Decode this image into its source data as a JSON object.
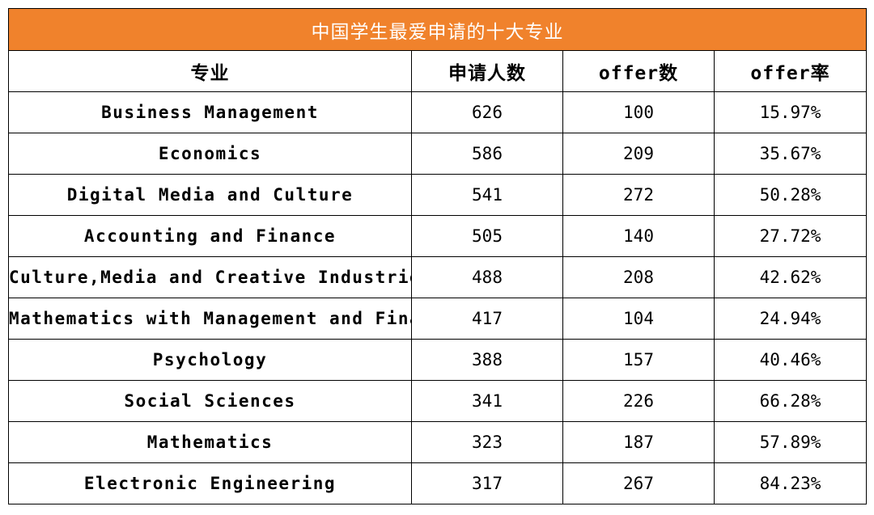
{
  "table": {
    "title": "中国学生最爱申请的十大专业",
    "headers": [
      "专业",
      "申请人数",
      "offer数",
      "offer率"
    ],
    "rows": [
      {
        "major": "Business Management",
        "applicants": "626",
        "offers": "100",
        "rate": "15.97%"
      },
      {
        "major": "Economics",
        "applicants": "586",
        "offers": "209",
        "rate": "35.67%"
      },
      {
        "major": "Digital Media and Culture",
        "applicants": "541",
        "offers": "272",
        "rate": "50.28%"
      },
      {
        "major": "Accounting and Finance",
        "applicants": "505",
        "offers": "140",
        "rate": "27.72%"
      },
      {
        "major": "Culture,Media and Creative Industries",
        "applicants": "488",
        "offers": "208",
        "rate": "42.62%"
      },
      {
        "major": "Mathematics with Management and Finance",
        "applicants": "417",
        "offers": "104",
        "rate": "24.94%"
      },
      {
        "major": "Psychology",
        "applicants": "388",
        "offers": "157",
        "rate": "40.46%"
      },
      {
        "major": "Social Sciences",
        "applicants": "341",
        "offers": "226",
        "rate": "66.28%"
      },
      {
        "major": "Mathematics",
        "applicants": "323",
        "offers": "187",
        "rate": "57.89%"
      },
      {
        "major": "Electronic Engineering",
        "applicants": "317",
        "offers": "267",
        "rate": "84.23%"
      }
    ]
  }
}
